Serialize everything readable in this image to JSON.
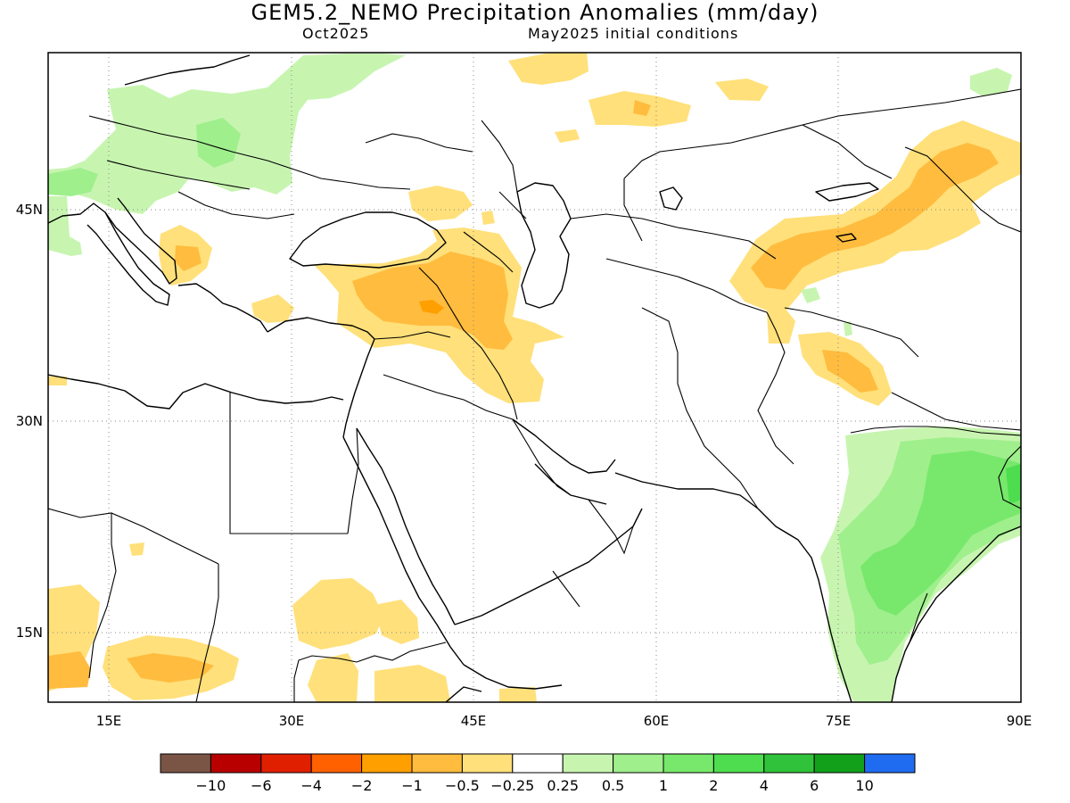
{
  "title": "GEM5.2_NEMO Precipitation Anomalies (mm/day)",
  "subtitle_left": "Oct2025",
  "subtitle_right": "May2025 initial conditions",
  "map": {
    "lon_range": [
      10,
      90
    ],
    "lat_range": [
      9,
      55
    ],
    "lon_ticks": [
      "15E",
      "30E",
      "45E",
      "60E",
      "75E",
      "90E"
    ],
    "lat_ticks": [
      "45N",
      "30N",
      "15N"
    ],
    "grid": "dotted",
    "anomalies": [
      {
        "region": "Turkey / Caucasus / Iraq",
        "sign": "dry",
        "max_level": "-1"
      },
      {
        "region": "Balkans",
        "sign": "dry",
        "max_level": "-1"
      },
      {
        "region": "Central Asia / Tian Shan / W China",
        "sign": "dry",
        "max_level": "-1"
      },
      {
        "region": "N India / Kashmir",
        "sign": "dry",
        "max_level": "-1"
      },
      {
        "region": "Sahel / Sudan / Chad",
        "sign": "dry",
        "max_level": "-1"
      },
      {
        "region": "E Europe / Alps",
        "sign": "wet",
        "max_level": "1"
      },
      {
        "region": "India / Bay of Bengal",
        "sign": "wet",
        "max_level": "2"
      }
    ]
  },
  "colorbar": {
    "labels": [
      "-10",
      "-6",
      "-4",
      "-2",
      "-1",
      "-0.5",
      "-0.25",
      "0.25",
      "0.5",
      "1",
      "2",
      "4",
      "6",
      "10"
    ],
    "colors": [
      "#7a5546",
      "#b90000",
      "#e01f00",
      "#ff6100",
      "#ff9f00",
      "#ffbc3e",
      "#ffe07a",
      "#ffffff",
      "#c7f5b0",
      "#9fef8c",
      "#77e86b",
      "#4ddd4e",
      "#30c23a",
      "#12a01b",
      "#1f6cf0"
    ]
  },
  "palette": {
    "background": "#ffffff",
    "border": "#000000",
    "grid": "#888888"
  }
}
